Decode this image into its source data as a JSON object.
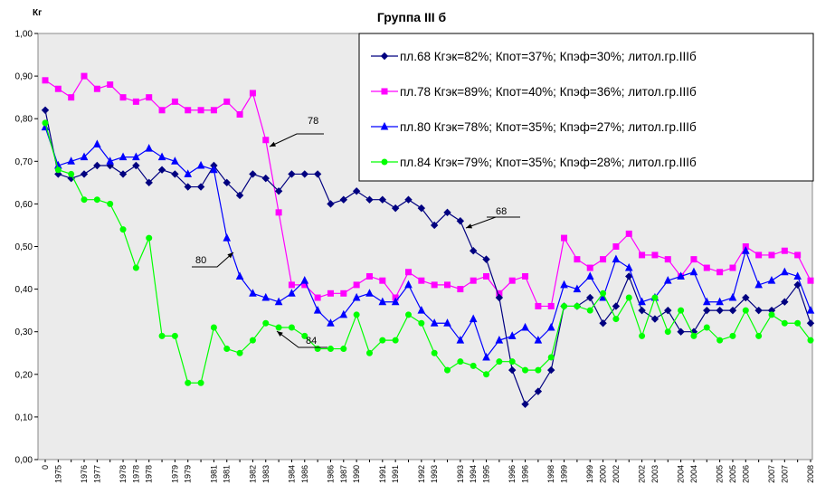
{
  "chart_data": {
    "type": "line",
    "title": "Группа III б",
    "y_label": "Кг",
    "categories": [
      "0",
      "1975",
      null,
      "1976",
      "1977",
      null,
      "1978",
      "1978",
      "1978",
      null,
      "1979",
      "1979",
      null,
      "1981",
      "1981",
      null,
      "1982",
      "1983",
      null,
      "1984",
      "1986",
      null,
      "1986",
      "1987",
      "1990",
      null,
      "1991",
      "1991",
      null,
      "1992",
      "1993",
      null,
      "1993",
      "1994",
      "1995",
      null,
      "1996",
      "1996",
      null,
      "1998",
      "1999",
      null,
      "1999",
      "2000",
      "2002",
      null,
      "2002",
      "2003",
      null,
      "2004",
      "2004",
      null,
      "2005",
      "2005",
      "2006",
      null,
      "2007",
      "2007",
      null,
      "2008"
    ],
    "series": [
      {
        "name": "пл.68  Кгэк=82%; Кпот=37%; Кпэф=30%; литол.гр.IIIб",
        "color": "#000080",
        "marker": "diamond",
        "values": [
          0.82,
          0.67,
          0.66,
          0.67,
          0.69,
          0.69,
          0.67,
          0.69,
          0.65,
          0.68,
          0.67,
          0.64,
          0.64,
          0.69,
          0.65,
          0.62,
          0.67,
          0.66,
          0.63,
          0.67,
          0.67,
          0.67,
          0.6,
          0.61,
          0.63,
          0.61,
          0.61,
          0.59,
          0.61,
          0.59,
          0.55,
          0.58,
          0.56,
          0.49,
          0.47,
          0.38,
          0.21,
          0.13,
          0.16,
          0.21,
          0.36,
          0.36,
          0.38,
          0.32,
          0.36,
          0.43,
          0.35,
          0.33,
          0.35,
          0.3,
          0.3,
          0.35,
          0.35,
          0.35,
          0.38,
          0.35,
          0.35,
          0.37,
          0.41,
          0.32
        ]
      },
      {
        "name": "пл.78  Кгэк=89%; Кпот=40%; Кпэф=36%; литол.гр.IIIб",
        "color": "#ff00ff",
        "marker": "square",
        "values": [
          0.89,
          0.87,
          0.85,
          0.9,
          0.87,
          0.88,
          0.85,
          0.84,
          0.85,
          0.82,
          0.84,
          0.82,
          0.82,
          0.82,
          0.84,
          0.81,
          0.86,
          0.75,
          0.58,
          0.41,
          0.41,
          0.38,
          0.39,
          0.39,
          0.41,
          0.43,
          0.42,
          0.38,
          0.44,
          0.42,
          0.41,
          0.41,
          0.4,
          0.42,
          0.43,
          0.39,
          0.42,
          0.43,
          0.36,
          0.36,
          0.52,
          0.47,
          0.45,
          0.47,
          0.5,
          0.53,
          0.48,
          0.48,
          0.47,
          0.43,
          0.47,
          0.45,
          0.44,
          0.45,
          0.5,
          0.48,
          0.48,
          0.49,
          0.48,
          0.42
        ]
      },
      {
        "name": "пл.80  Кгэк=78%; Кпот=35%; Кпэф=27%; литол.гр.IIIб",
        "color": "#0000ff",
        "marker": "triangle",
        "values": [
          0.78,
          0.69,
          0.7,
          0.71,
          0.74,
          0.7,
          0.71,
          0.71,
          0.73,
          0.71,
          0.7,
          0.67,
          0.69,
          0.68,
          0.52,
          0.43,
          0.39,
          0.38,
          0.37,
          0.39,
          0.42,
          0.35,
          0.32,
          0.34,
          0.38,
          0.39,
          0.37,
          0.37,
          0.41,
          0.35,
          0.32,
          0.32,
          0.28,
          0.33,
          0.24,
          0.28,
          0.29,
          0.31,
          0.28,
          0.31,
          0.41,
          0.4,
          0.43,
          0.38,
          0.47,
          0.45,
          0.37,
          0.38,
          0.42,
          0.43,
          0.44,
          0.37,
          0.37,
          0.38,
          0.49,
          0.41,
          0.42,
          0.44,
          0.43,
          0.35
        ]
      },
      {
        "name": "пл.84 Кгэк=79%; Кпот=35%; Кпэф=28%; литол.гр.IIIб",
        "color": "#00ff00",
        "marker": "circle",
        "values": [
          0.79,
          0.68,
          0.67,
          0.61,
          0.61,
          0.6,
          0.54,
          0.45,
          0.52,
          0.29,
          0.29,
          0.18,
          0.18,
          0.31,
          0.26,
          0.25,
          0.28,
          0.32,
          0.31,
          0.31,
          0.29,
          0.26,
          0.26,
          0.26,
          0.34,
          0.25,
          0.28,
          0.28,
          0.34,
          0.32,
          0.25,
          0.21,
          0.23,
          0.22,
          0.2,
          0.23,
          0.23,
          0.21,
          0.21,
          0.24,
          0.36,
          0.36,
          0.35,
          0.39,
          0.33,
          0.38,
          0.29,
          0.38,
          0.3,
          0.35,
          0.29,
          0.31,
          0.28,
          0.29,
          0.35,
          0.29,
          0.34,
          0.32,
          0.32,
          0.28
        ]
      }
    ],
    "ylim": [
      0,
      1
    ],
    "yticks": [
      {
        "value": 0,
        "label": "0,00"
      },
      {
        "value": 0.1,
        "label": "0,10"
      },
      {
        "value": 0.2,
        "label": "0,20"
      },
      {
        "value": 0.3,
        "label": "0,30"
      },
      {
        "value": 0.4,
        "label": "0,40"
      },
      {
        "value": 0.5,
        "label": "0,50"
      },
      {
        "value": 0.6,
        "label": "0,60"
      },
      {
        "value": 0.7,
        "label": "0,70"
      },
      {
        "value": 0.8,
        "label": "0,80"
      },
      {
        "value": 0.9,
        "label": "0,90"
      },
      {
        "value": 1,
        "label": "1,00"
      }
    ],
    "annotations": [
      "78",
      "68",
      "80",
      "84"
    ],
    "legend": "upper right"
  }
}
